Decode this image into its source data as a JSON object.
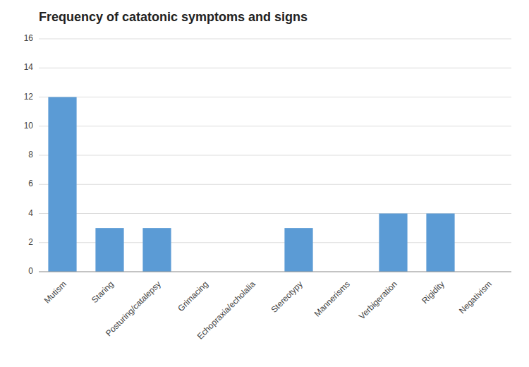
{
  "chart_data": {
    "type": "bar",
    "title": "Frequency of catatonic symptoms and signs",
    "categories": [
      "Mutism",
      "Staring",
      "Posturing/catalepsy",
      "Grimacing",
      "Echopraxia/echolalia",
      "Stereotypy",
      "Mannerisms",
      "Verbigeration",
      "Rigidity",
      "Negativism"
    ],
    "values": [
      12,
      3,
      3,
      0,
      0,
      3,
      0,
      4,
      4,
      0
    ],
    "color": "#5B9BD5",
    "ylim": [
      0,
      16
    ],
    "yticks": [
      0,
      2,
      4,
      6,
      8,
      10,
      12,
      14,
      16
    ],
    "grid": true
  }
}
